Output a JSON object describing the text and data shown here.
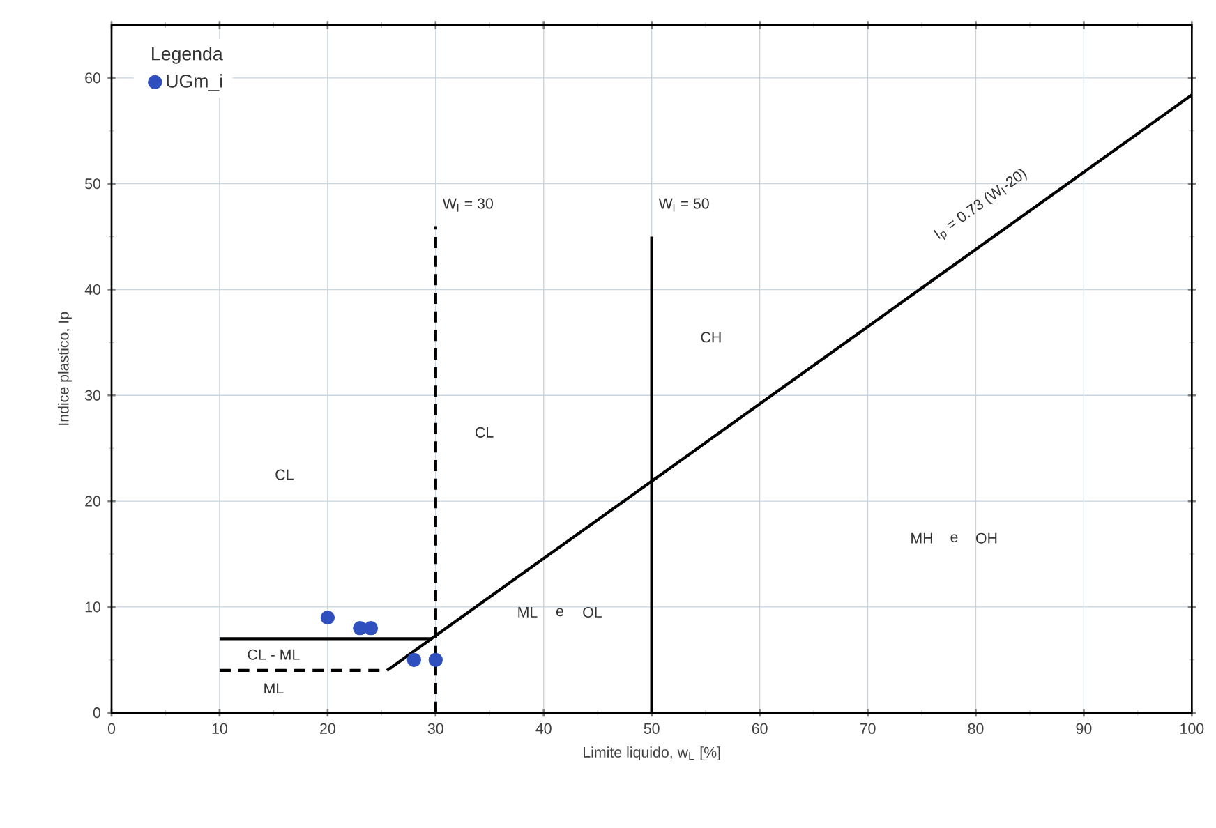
{
  "chart_data": {
    "type": "scatter",
    "xlabel": "Limite liquido, w$_{L}$ [%]",
    "ylabel": "Indice plastico, Ip",
    "legend_title": "Legenda",
    "xlim": [
      0,
      100
    ],
    "ylim": [
      0,
      65
    ],
    "xticks": [
      0,
      10,
      20,
      30,
      40,
      50,
      60,
      70,
      80,
      90,
      100
    ],
    "yticks": [
      0,
      10,
      20,
      30,
      40,
      50,
      60
    ],
    "grid": true,
    "legend": "top left",
    "series": [
      {
        "name": "UGm_i",
        "color": "#2f4fbf",
        "marker": "circle",
        "x": [
          20,
          23,
          24,
          28,
          30
        ],
        "values": [
          9,
          8,
          8,
          5,
          5
        ]
      },
      {
        "type": "line",
        "color": "#000000",
        "line_style": "solid",
        "marker": "none",
        "x": [
          25.5,
          100
        ],
        "values": [
          4,
          58.4
        ]
      },
      {
        "type": "line",
        "color": "#000000",
        "line_style": "solid",
        "marker": "none",
        "x": [
          10,
          29.6
        ],
        "values": [
          7,
          7
        ]
      },
      {
        "type": "line",
        "color": "#000000",
        "line_style": "dashed",
        "marker": "none",
        "x": [
          10,
          25.5
        ],
        "values": [
          4,
          4
        ]
      },
      {
        "type": "line",
        "color": "#000000",
        "line_style": "dashed",
        "marker": "none",
        "x": [
          30,
          30
        ],
        "values": [
          0,
          46
        ]
      },
      {
        "type": "line",
        "color": "#000000",
        "line_style": "solid",
        "marker": "none",
        "x": [
          50,
          50
        ],
        "values": [
          0,
          45
        ]
      }
    ],
    "annotations": [
      "W$_{l}$ = 30",
      "W$_{l}$ = 50",
      "I$_{p}$ = 0.73 (W$_{l}$-20)",
      "CL",
      "CL",
      "CH",
      "MH",
      "e",
      "OH",
      "ML",
      "e",
      "OL",
      "CL - ML",
      "ML"
    ]
  }
}
